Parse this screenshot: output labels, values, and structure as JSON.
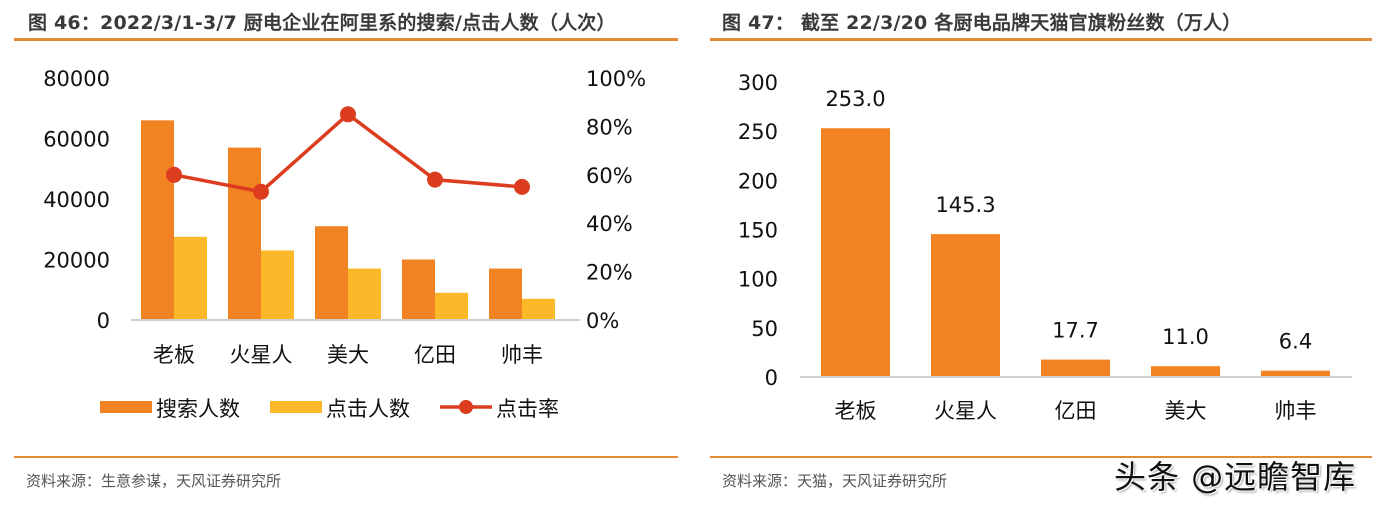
{
  "left_panel": {
    "title": "图 46：2022/3/1-3/7 厨电企业在阿里系的搜索/点击人数（人次）",
    "source": "资料来源：生意参谋，天风证券研究所",
    "y_ticks_left": [
      "80000",
      "60000",
      "40000",
      "20000",
      "0"
    ],
    "y_ticks_right": [
      "100%",
      "80%",
      "60%",
      "40%",
      "20%",
      "0%"
    ],
    "categories": [
      "老板",
      "火星人",
      "美大",
      "亿田",
      "帅丰"
    ],
    "legend": [
      "搜索人数",
      "点击人数",
      "点击率"
    ]
  },
  "right_panel": {
    "title": "图 47：  截至 22/3/20 各厨电品牌天猫官旗粉丝数（万人）",
    "source": "资料来源：天猫，天风证券研究所",
    "y_ticks": [
      "300",
      "250",
      "200",
      "150",
      "100",
      "50",
      "0"
    ],
    "categories": [
      "老板",
      "火星人",
      "亿田",
      "美大",
      "帅丰"
    ],
    "value_labels": [
      "253.0",
      "145.3",
      "17.7",
      "11.0",
      "6.4"
    ]
  },
  "watermark": "头条 @远瞻智库",
  "colors": {
    "search_bar": "#f28322",
    "click_bar": "#fbb829",
    "click_rate_line": "#dc3d1f",
    "fans_bar": "#f28322",
    "rule": "#e28a3a",
    "axis": "#d0d0d0"
  },
  "chart_data": [
    {
      "type": "bar",
      "title": "图 46：2022/3/1-3/7 厨电企业在阿里系的搜索/点击人数（人次）",
      "categories": [
        "老板",
        "火星人",
        "美大",
        "亿田",
        "帅丰"
      ],
      "series": [
        {
          "name": "搜索人数",
          "type": "bar",
          "axis": "left",
          "values": [
            66000,
            57000,
            31000,
            20000,
            17000
          ]
        },
        {
          "name": "点击人数",
          "type": "bar",
          "axis": "left",
          "values": [
            27500,
            23000,
            17000,
            9000,
            7000
          ]
        },
        {
          "name": "点击率",
          "type": "line",
          "axis": "right",
          "values": [
            0.6,
            0.53,
            0.85,
            0.58,
            0.55
          ]
        }
      ],
      "xlabel": "",
      "ylabel": "",
      "ylim": [
        0,
        80000
      ],
      "y2lim": [
        0,
        1.0
      ],
      "y_ticks": [
        0,
        20000,
        40000,
        60000,
        80000
      ],
      "y2_ticks": [
        "0%",
        "20%",
        "40%",
        "60%",
        "80%",
        "100%"
      ],
      "grid": false,
      "legend_position": "bottom"
    },
    {
      "type": "bar",
      "title": "图 47：截至 22/3/20 各厨电品牌天猫官旗粉丝数（万人）",
      "categories": [
        "老板",
        "火星人",
        "亿田",
        "美大",
        "帅丰"
      ],
      "values": [
        253.0,
        145.3,
        17.7,
        11.0,
        6.4
      ],
      "xlabel": "",
      "ylabel": "万人",
      "ylim": [
        0,
        300
      ],
      "y_ticks": [
        0,
        50,
        100,
        150,
        200,
        250,
        300
      ],
      "grid": false,
      "data_labels": true
    }
  ]
}
